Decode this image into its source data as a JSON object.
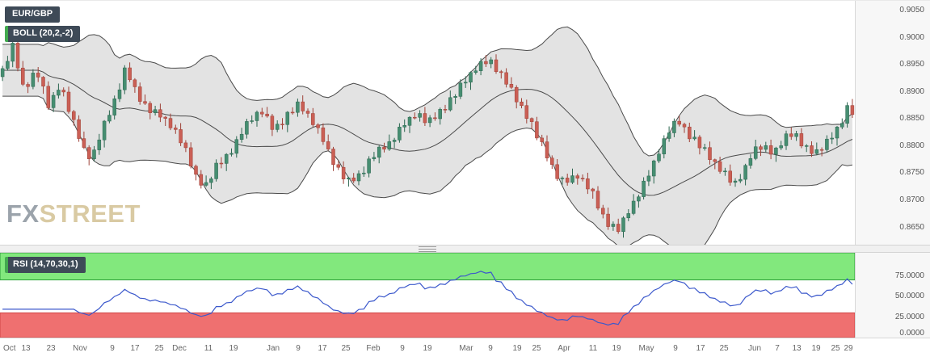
{
  "main": {
    "symbol_badge": "EUR/GBP",
    "indicator_badge": "BOLL (20,2,-2)"
  },
  "rsi": {
    "badge": "RSI (14,70,30,1)"
  },
  "watermark": {
    "part1": "FX",
    "part2": "STREET"
  },
  "chart_data": [
    {
      "type": "candlestick",
      "symbol": "EUR/GBP",
      "indicator_label": "BOLL (20,2,-2)",
      "ylim": [
        0.8618,
        0.9068
      ],
      "yticks": [
        {
          "v": 0.905,
          "label": "0.9050"
        },
        {
          "v": 0.9,
          "label": "0.9000"
        },
        {
          "v": 0.895,
          "label": "0.8950"
        },
        {
          "v": 0.89,
          "label": "0.8900"
        },
        {
          "v": 0.885,
          "label": "0.8850"
        },
        {
          "v": 0.88,
          "label": "0.8800"
        },
        {
          "v": 0.875,
          "label": "0.8750"
        },
        {
          "v": 0.87,
          "label": "0.8700"
        },
        {
          "v": 0.865,
          "label": "0.8650"
        }
      ],
      "xticks": [
        {
          "label": "Oct",
          "f": 0.004
        },
        {
          "label": "13",
          "f": 0.03
        },
        {
          "label": "23",
          "f": 0.06
        },
        {
          "label": "Nov",
          "f": 0.094
        },
        {
          "label": "9",
          "f": 0.131
        },
        {
          "label": "17",
          "f": 0.158
        },
        {
          "label": "25",
          "f": 0.186
        },
        {
          "label": "Dec",
          "f": 0.21
        },
        {
          "label": "11",
          "f": 0.244
        },
        {
          "label": "19",
          "f": 0.273
        },
        {
          "label": "Jan",
          "f": 0.319
        },
        {
          "label": "9",
          "f": 0.349
        },
        {
          "label": "17",
          "f": 0.377
        },
        {
          "label": "25",
          "f": 0.405
        },
        {
          "label": "Feb",
          "f": 0.437
        },
        {
          "label": "9",
          "f": 0.471
        },
        {
          "label": "19",
          "f": 0.5
        },
        {
          "label": "Mar",
          "f": 0.545
        },
        {
          "label": "9",
          "f": 0.574
        },
        {
          "label": "19",
          "f": 0.605
        },
        {
          "label": "25",
          "f": 0.628
        },
        {
          "label": "Apr",
          "f": 0.66
        },
        {
          "label": "11",
          "f": 0.694
        },
        {
          "label": "19",
          "f": 0.721
        },
        {
          "label": "May",
          "f": 0.756
        },
        {
          "label": "9",
          "f": 0.79
        },
        {
          "label": "17",
          "f": 0.819
        },
        {
          "label": "25",
          "f": 0.847
        },
        {
          "label": "Jun",
          "f": 0.883
        },
        {
          "label": "7",
          "f": 0.909
        },
        {
          "label": "13",
          "f": 0.932
        },
        {
          "label": "19",
          "f": 0.955
        },
        {
          "label": "25",
          "f": 0.977
        },
        {
          "label": "29",
          "f": 0.992
        }
      ],
      "boll": {
        "period": 20,
        "k": 2
      },
      "colors": {
        "up_fill": "#468e71",
        "up_stroke": "#2c6650",
        "down_fill": "#ca5f55",
        "down_stroke": "#9e4238",
        "band_fill": "#e3e3e3",
        "band_line": "#4a4a4a"
      },
      "generation": {
        "count": 168,
        "first_open_offset": -0.0015,
        "keyframes": [
          [
            0.0,
            0.894
          ],
          [
            0.012,
            0.8985
          ],
          [
            0.025,
            0.89
          ],
          [
            0.04,
            0.8945
          ],
          [
            0.055,
            0.8868
          ],
          [
            0.068,
            0.8915
          ],
          [
            0.082,
            0.8852
          ],
          [
            0.094,
            0.8798
          ],
          [
            0.105,
            0.8776
          ],
          [
            0.12,
            0.884
          ],
          [
            0.131,
            0.8882
          ],
          [
            0.145,
            0.8944
          ],
          [
            0.158,
            0.8892
          ],
          [
            0.172,
            0.887
          ],
          [
            0.186,
            0.8856
          ],
          [
            0.2,
            0.8836
          ],
          [
            0.215,
            0.8792
          ],
          [
            0.228,
            0.8744
          ],
          [
            0.24,
            0.8726
          ],
          [
            0.252,
            0.8762
          ],
          [
            0.273,
            0.88
          ],
          [
            0.29,
            0.885
          ],
          [
            0.305,
            0.8862
          ],
          [
            0.319,
            0.8832
          ],
          [
            0.335,
            0.8856
          ],
          [
            0.349,
            0.8876
          ],
          [
            0.364,
            0.885
          ],
          [
            0.377,
            0.8812
          ],
          [
            0.391,
            0.8766
          ],
          [
            0.405,
            0.8732
          ],
          [
            0.42,
            0.8748
          ],
          [
            0.437,
            0.8782
          ],
          [
            0.455,
            0.8806
          ],
          [
            0.471,
            0.8838
          ],
          [
            0.487,
            0.8862
          ],
          [
            0.5,
            0.884
          ],
          [
            0.515,
            0.8866
          ],
          [
            0.53,
            0.8888
          ],
          [
            0.545,
            0.8922
          ],
          [
            0.558,
            0.8948
          ],
          [
            0.574,
            0.8958
          ],
          [
            0.588,
            0.8928
          ],
          [
            0.605,
            0.8886
          ],
          [
            0.618,
            0.8856
          ],
          [
            0.628,
            0.882
          ],
          [
            0.64,
            0.8784
          ],
          [
            0.652,
            0.8748
          ],
          [
            0.661,
            0.8732
          ],
          [
            0.676,
            0.8748
          ],
          [
            0.694,
            0.8712
          ],
          [
            0.705,
            0.8676
          ],
          [
            0.716,
            0.8652
          ],
          [
            0.726,
            0.8644
          ],
          [
            0.736,
            0.8678
          ],
          [
            0.748,
            0.8712
          ],
          [
            0.76,
            0.8746
          ],
          [
            0.772,
            0.879
          ],
          [
            0.785,
            0.8828
          ],
          [
            0.795,
            0.8848
          ],
          [
            0.808,
            0.8822
          ],
          [
            0.819,
            0.8802
          ],
          [
            0.834,
            0.8776
          ],
          [
            0.847,
            0.8756
          ],
          [
            0.86,
            0.8728
          ],
          [
            0.872,
            0.8752
          ],
          [
            0.883,
            0.8788
          ],
          [
            0.895,
            0.8802
          ],
          [
            0.909,
            0.8788
          ],
          [
            0.92,
            0.8812
          ],
          [
            0.932,
            0.8826
          ],
          [
            0.944,
            0.8798
          ],
          [
            0.955,
            0.8786
          ],
          [
            0.966,
            0.8802
          ],
          [
            0.977,
            0.8818
          ],
          [
            0.986,
            0.8836
          ],
          [
            0.993,
            0.8874
          ],
          [
            1.0,
            0.8866
          ]
        ],
        "jitter": [
          3,
          -6,
          5,
          -2,
          7,
          -5,
          2,
          -8,
          6,
          -3,
          8,
          -4,
          2,
          -7,
          5,
          -3
        ],
        "wick_up": [
          5,
          10,
          3,
          8,
          13,
          4,
          7,
          11,
          2,
          9,
          6,
          12
        ],
        "wick_down": [
          8,
          4,
          11,
          6,
          3,
          12,
          5,
          9,
          14,
          4,
          8,
          6
        ]
      }
    },
    {
      "type": "line",
      "name": "RSI",
      "label": "RSI (14,70,30,1)",
      "period": 14,
      "overbought": 70,
      "oversold": 30,
      "ylim": [
        0,
        103
      ],
      "yticks": [
        {
          "v": 75,
          "label": "75.0000"
        },
        {
          "v": 50,
          "label": "50.0000"
        },
        {
          "v": 25,
          "label": "25.0000"
        },
        {
          "v": 0,
          "label": "0.0000"
        }
      ],
      "colors": {
        "line": "#3c59cc",
        "overbought_fill": "#82e87d",
        "overbought_edge": "#2e9e3a",
        "oversold_fill": "#ef7070",
        "oversold_edge": "#d04545"
      }
    }
  ]
}
